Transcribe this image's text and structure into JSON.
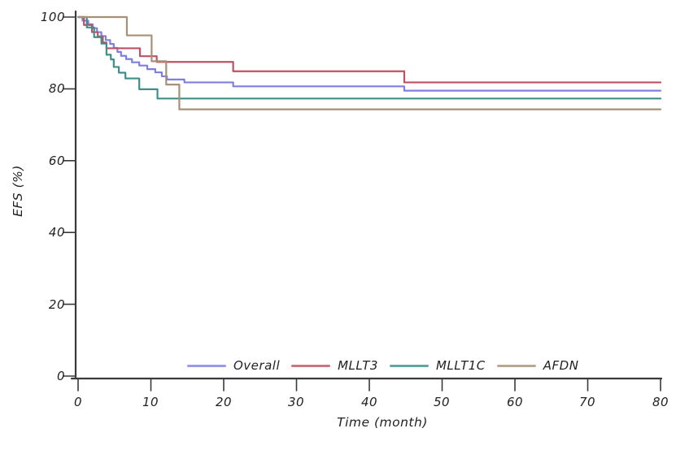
{
  "figure": {
    "background": "#ffffff",
    "axis_color": "#3a3a3a",
    "text_color": "#222222"
  },
  "axes": {
    "x_label": "Time (month)",
    "y_label": "EFS (%)",
    "x_tick_labels": [
      "0",
      "10",
      "20",
      "30",
      "40",
      "50",
      "60",
      "70",
      "80"
    ],
    "y_tick_labels_top_down": [
      "100",
      "80",
      "60",
      "40",
      "20",
      "0"
    ]
  },
  "chart_data": {
    "type": "line",
    "subtype": "kaplan-meier-step",
    "title": "",
    "xlabel": "Time (month)",
    "ylabel": "EFS (%)",
    "xlim": [
      0,
      80
    ],
    "ylim": [
      0,
      100
    ],
    "x_ticks": [
      0,
      10,
      20,
      30,
      40,
      50,
      60,
      70,
      80
    ],
    "y_ticks": [
      0,
      20,
      40,
      60,
      80,
      100
    ],
    "grid": false,
    "legend_position": "bottom-center",
    "series": [
      {
        "name": "Overall",
        "color": "#7f7fe2",
        "points": [
          [
            0,
            100
          ],
          [
            0.6,
            99
          ],
          [
            1.4,
            98
          ],
          [
            2,
            96.9
          ],
          [
            2.6,
            95.8
          ],
          [
            3.2,
            94.7
          ],
          [
            3.8,
            93.6
          ],
          [
            4.4,
            92.5
          ],
          [
            4.9,
            91.4
          ],
          [
            5.4,
            90.3
          ],
          [
            5.9,
            89.2
          ],
          [
            6.6,
            88.3
          ],
          [
            7.4,
            87.4
          ],
          [
            8.4,
            86.5
          ],
          [
            9.5,
            85.5
          ],
          [
            10.6,
            84.6
          ],
          [
            11.5,
            83.5
          ],
          [
            12.2,
            82.6
          ],
          [
            14.6,
            81.8
          ],
          [
            21.3,
            80.7
          ],
          [
            44.8,
            79.5
          ],
          [
            80,
            79.5
          ]
        ]
      },
      {
        "name": "MLLT3",
        "color": "#bc5263",
        "points": [
          [
            0,
            100
          ],
          [
            0.8,
            97.8
          ],
          [
            1.9,
            95.8
          ],
          [
            2.7,
            94.6
          ],
          [
            3.4,
            92.9
          ],
          [
            3.9,
            91.3
          ],
          [
            8.5,
            89.1
          ],
          [
            10.8,
            87.5
          ],
          [
            21.3,
            84.9
          ],
          [
            44.8,
            81.8
          ],
          [
            80,
            81.8
          ]
        ]
      },
      {
        "name": "MLLT1C",
        "color": "#3f8e89",
        "points": [
          [
            0,
            100
          ],
          [
            1.2,
            97.1
          ],
          [
            2.2,
            94.4
          ],
          [
            3.2,
            92.6
          ],
          [
            3.9,
            89.5
          ],
          [
            4.5,
            88.2
          ],
          [
            4.9,
            86.1
          ],
          [
            5.6,
            84.5
          ],
          [
            6.5,
            82.9
          ],
          [
            8.4,
            79.9
          ],
          [
            10.9,
            77.3
          ],
          [
            80,
            77.3
          ]
        ]
      },
      {
        "name": "AFDN",
        "color": "#a69176",
        "points": [
          [
            0,
            100
          ],
          [
            6.7,
            94.9
          ],
          [
            10.1,
            87.7
          ],
          [
            12.1,
            81.2
          ],
          [
            13.9,
            74.3
          ],
          [
            80,
            74.3
          ]
        ]
      }
    ]
  }
}
